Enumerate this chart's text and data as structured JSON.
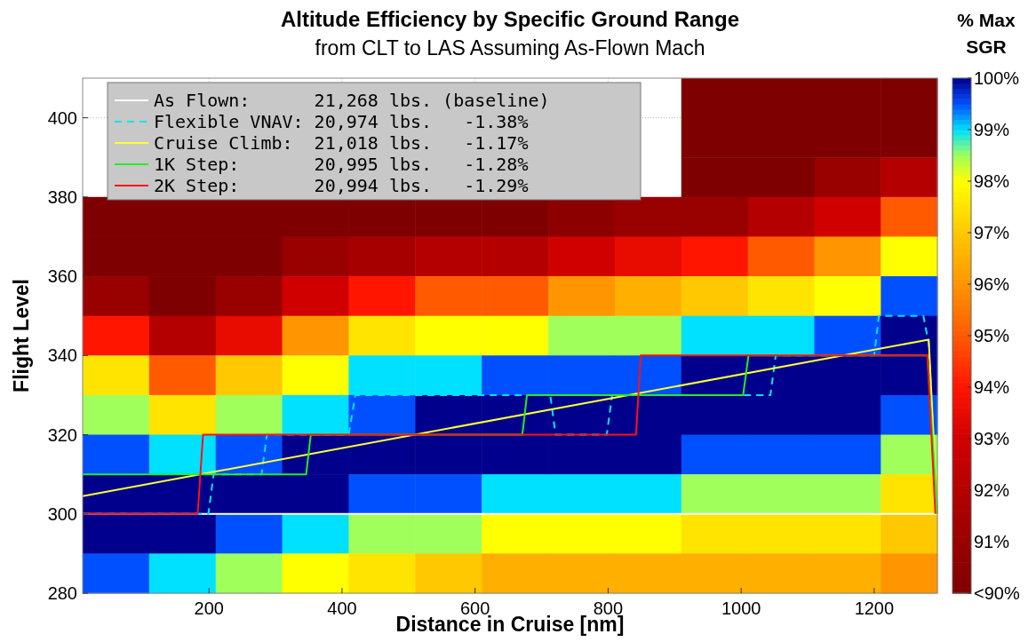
{
  "chart_data": {
    "type": "heatmap",
    "title": "Altitude Efficiency by Specific Ground Range",
    "subtitle": "from CLT to LAS Assuming As-Flown Mach",
    "xlabel": "Distance in Cruise [nm]",
    "ylabel": "Flight Level",
    "clabel": "% Max\nSGR",
    "x": [
      60,
      160,
      260,
      360,
      460,
      560,
      660,
      760,
      860,
      960,
      1060,
      1160,
      1260
    ],
    "y": [
      405,
      395,
      385,
      375,
      365,
      355,
      345,
      335,
      325,
      315,
      305,
      295,
      285
    ],
    "cells": [
      [
        null,
        null,
        null,
        null,
        null,
        null,
        null,
        null,
        null,
        90,
        90,
        90,
        90
      ],
      [
        null,
        null,
        null,
        null,
        null,
        null,
        null,
        null,
        null,
        90,
        90,
        90,
        90
      ],
      [
        null,
        null,
        null,
        null,
        null,
        null,
        null,
        null,
        null,
        90,
        90,
        91,
        92
      ],
      [
        90,
        90,
        90,
        90,
        90,
        90,
        90,
        90.5,
        91,
        91,
        92,
        93,
        95
      ],
      [
        90,
        90,
        90,
        91,
        91.5,
        92,
        92,
        93,
        93.5,
        94,
        95,
        96,
        98
      ],
      [
        91,
        90,
        91,
        93,
        94,
        95,
        95,
        96,
        96.5,
        97,
        97.5,
        98,
        99.5
      ],
      [
        94,
        92,
        93.5,
        96,
        97.5,
        98,
        98,
        98.5,
        98.5,
        99,
        99,
        99.5,
        100
      ],
      [
        97.5,
        95,
        97,
        98,
        99,
        99,
        99.5,
        99.5,
        99.5,
        100,
        100,
        100,
        100
      ],
      [
        98.5,
        97.5,
        98.5,
        99,
        99.5,
        100,
        100,
        100,
        100,
        100,
        100,
        100,
        99.5
      ],
      [
        99.5,
        99,
        99.5,
        100,
        100,
        100,
        100,
        100,
        100,
        99.5,
        99.5,
        99.5,
        98.5
      ],
      [
        100,
        100,
        100,
        100,
        99.5,
        99.5,
        99,
        99,
        99,
        98.5,
        98.5,
        98.5,
        97.5
      ],
      [
        100,
        100,
        99.5,
        99,
        98.5,
        98.5,
        98,
        98,
        98,
        97.5,
        97.5,
        97.5,
        97
      ],
      [
        99.5,
        99,
        98.5,
        98,
        97.5,
        97,
        96.5,
        96.5,
        96.5,
        96.5,
        96.5,
        96.5,
        96
      ]
    ],
    "clim": [
      90,
      100
    ],
    "cticks": [
      {
        "value": 100,
        "label": "100%"
      },
      {
        "value": 99,
        "label": "99%"
      },
      {
        "value": 98,
        "label": "98%"
      },
      {
        "value": 97,
        "label": "97%"
      },
      {
        "value": 96,
        "label": "96%"
      },
      {
        "value": 95,
        "label": "95%"
      },
      {
        "value": 94,
        "label": "94%"
      },
      {
        "value": 93,
        "label": "93%"
      },
      {
        "value": 92,
        "label": "92%"
      },
      {
        "value": 91,
        "label": "91%"
      },
      {
        "value": 90,
        "label": "<90%"
      }
    ],
    "xlim": [
      10,
      1295
    ],
    "ylim": [
      280,
      410
    ],
    "xticks": [
      200,
      400,
      600,
      800,
      1000,
      1200
    ],
    "yticks": [
      280,
      300,
      320,
      340,
      360,
      380,
      400
    ],
    "grid": true,
    "legend": "top left",
    "series": [
      {
        "type": "line",
        "name": "As Flown:      21,268 lbs. (baseline)",
        "color": "#ffffff",
        "line_style": "solid",
        "x": [
          10,
          1295
        ],
        "values": [
          300,
          300
        ]
      },
      {
        "type": "line",
        "name": "Flexible VNAV: 20,974 lbs.   -1.38%",
        "color": "#00e5ee",
        "line_style": "dashed",
        "x": [
          10,
          199,
          207,
          279,
          287,
          410,
          420,
          713,
          721,
          798,
          806,
          1044,
          1052,
          1200,
          1207,
          1274,
          1282,
          1295
        ],
        "values": [
          300,
          300,
          310,
          310,
          320,
          320,
          330,
          330,
          320,
          320,
          330,
          330,
          340,
          340,
          350,
          350,
          343,
          300
        ]
      },
      {
        "type": "line",
        "name": "Cruise Climb:  21,018 lbs.   -1.17%",
        "color": "#ffff33",
        "line_style": "solid",
        "x": [
          10,
          1282,
          1295
        ],
        "values": [
          304.5,
          344,
          300
        ]
      },
      {
        "type": "line",
        "name": "1K Step:       20,995 lbs.   -1.28%",
        "color": "#22ee22",
        "line_style": "solid",
        "x": [
          10,
          346,
          353,
          671,
          678,
          1003,
          1011,
          1280,
          1295
        ],
        "values": [
          310,
          310,
          320,
          320,
          330,
          330,
          340,
          340,
          300
        ]
      },
      {
        "type": "line",
        "name": "2K Step:       20,994 lbs.   -1.29%",
        "color": "#ff1111",
        "line_style": "solid",
        "x": [
          10,
          183,
          191,
          842,
          849,
          1280,
          1292
        ],
        "values": [
          300,
          300,
          320,
          320,
          340,
          340,
          300
        ]
      }
    ]
  }
}
